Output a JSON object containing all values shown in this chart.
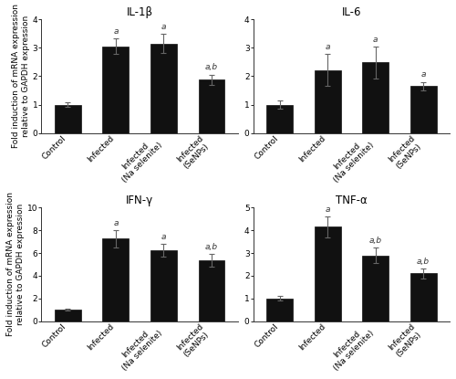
{
  "subplots": [
    {
      "title": "IL-1β",
      "categories": [
        "Control",
        "Infected",
        "Infected\n(Na selenite)",
        "Infected\n(SeNPs)"
      ],
      "values": [
        1.0,
        3.05,
        3.15,
        1.88
      ],
      "errors": [
        0.08,
        0.28,
        0.35,
        0.18
      ],
      "ylim": [
        0,
        4
      ],
      "yticks": [
        0,
        1,
        2,
        3,
        4
      ],
      "annotations": [
        "",
        "a",
        "a",
        "a,b"
      ]
    },
    {
      "title": "IL-6",
      "categories": [
        "Control",
        "Infected",
        "Infected\n(Na selenite)",
        "Infected\n(SeNPs)"
      ],
      "values": [
        1.0,
        2.22,
        2.48,
        1.65
      ],
      "errors": [
        0.15,
        0.55,
        0.55,
        0.15
      ],
      "ylim": [
        0,
        4
      ],
      "yticks": [
        0,
        1,
        2,
        3,
        4
      ],
      "annotations": [
        "",
        "a",
        "a",
        "a"
      ]
    },
    {
      "title": "IFN-γ",
      "categories": [
        "Control",
        "Infected",
        "Infected\n(Na selenite)",
        "Infected\n(SeNPs)"
      ],
      "values": [
        1.0,
        7.25,
        6.25,
        5.38
      ],
      "errors": [
        0.08,
        0.75,
        0.55,
        0.55
      ],
      "ylim": [
        0,
        10
      ],
      "yticks": [
        0,
        2,
        4,
        6,
        8,
        10
      ],
      "annotations": [
        "",
        "a",
        "a",
        "a,b"
      ]
    },
    {
      "title": "TNF-α",
      "categories": [
        "Control",
        "Infected",
        "Infected\n(Na selenite)",
        "Infected\n(SeNPs)"
      ],
      "values": [
        1.0,
        4.15,
        2.9,
        2.1
      ],
      "errors": [
        0.1,
        0.45,
        0.35,
        0.22
      ],
      "ylim": [
        0,
        5
      ],
      "yticks": [
        0,
        1,
        2,
        3,
        4,
        5
      ],
      "annotations": [
        "",
        "a",
        "a,b",
        "a,b"
      ]
    }
  ],
  "bar_color": "#111111",
  "bar_edge_color": "#111111",
  "error_color": "#666666",
  "ylabel": "Fold induction of mRNA expression\nrelative to GAPDH expression",
  "title_fontsize": 8.5,
  "label_fontsize": 6.5,
  "tick_fontsize": 6.5,
  "annot_fontsize": 6.5,
  "bar_width": 0.55,
  "figure_bg": "#ffffff"
}
